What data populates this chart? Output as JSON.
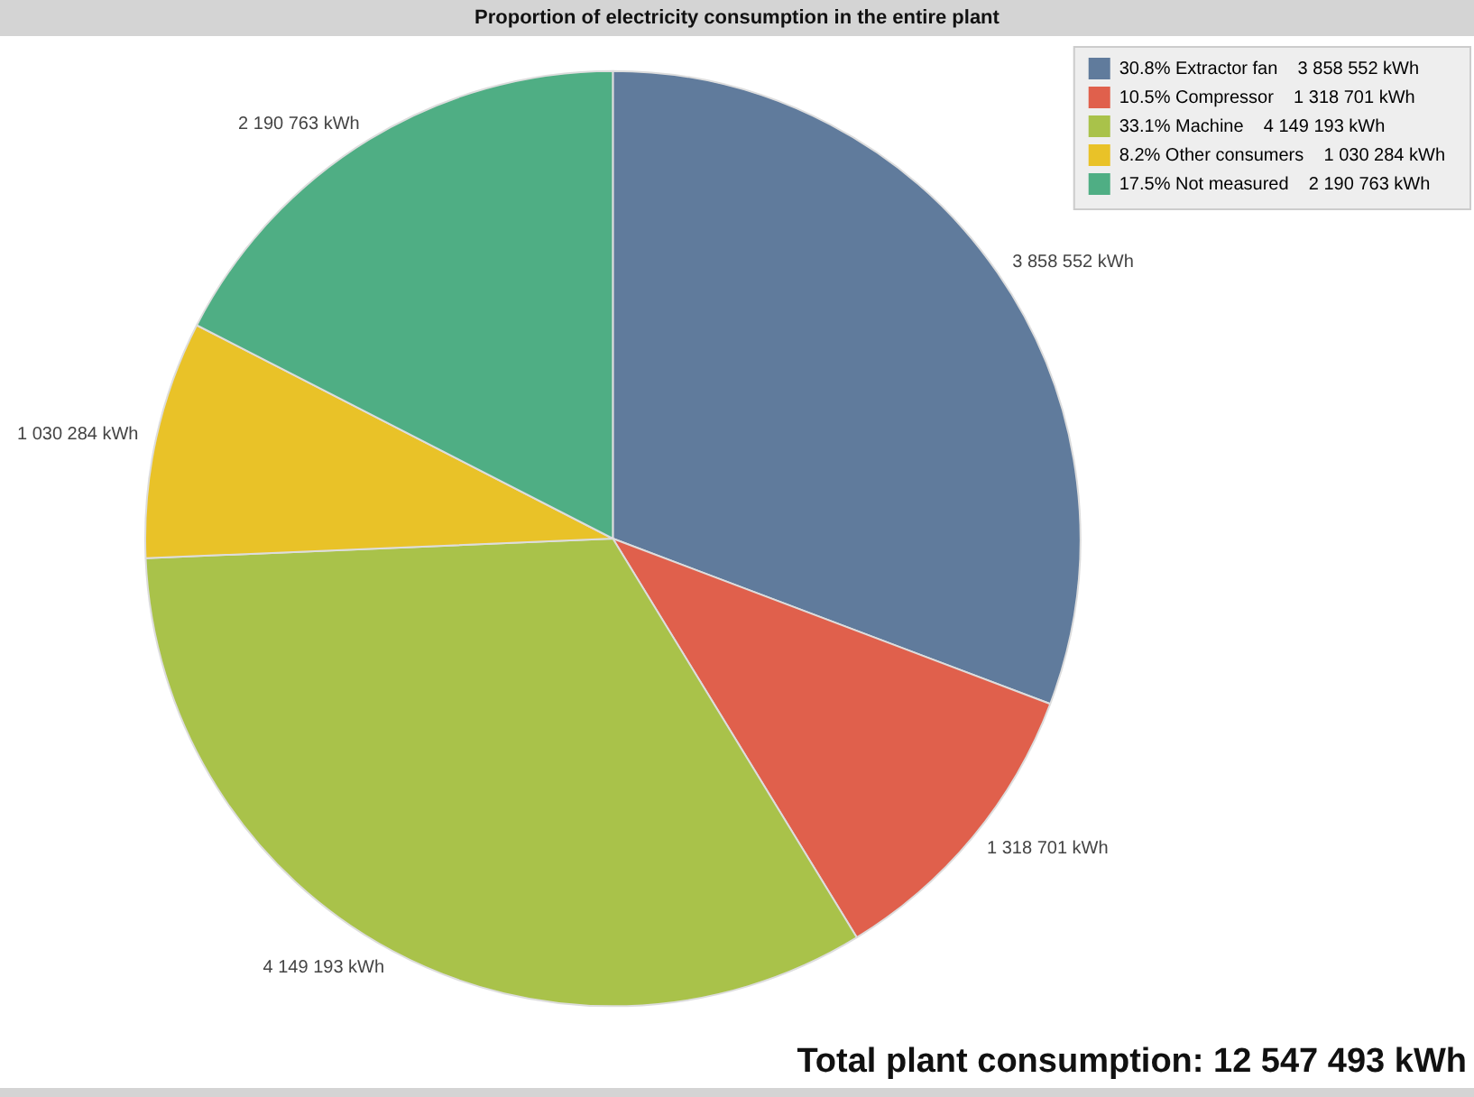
{
  "chart_data": {
    "type": "pie",
    "title": "Proportion of electricity consumption in the entire plant",
    "categories": [
      "30.8% Extractor fan",
      "10.5% Compressor",
      "33.1% Machine",
      "8.2% Other consumers",
      "17.5% Not measured"
    ],
    "values": [
      3858552,
      1318701,
      4149193,
      1030284,
      2190763
    ],
    "colors": [
      "#607b9c",
      "#e0604c",
      "#a9c24a",
      "#e9c228",
      "#4fae84"
    ],
    "value_labels": [
      "3 858 552 kWh",
      "1 318 701 kWh",
      "4 149 193 kWh",
      "1 030 284 kWh",
      "2 190 763 kWh"
    ],
    "legend": "top right",
    "annotations": [
      "Total plant consumption: 12 547 493 kWh"
    ]
  }
}
